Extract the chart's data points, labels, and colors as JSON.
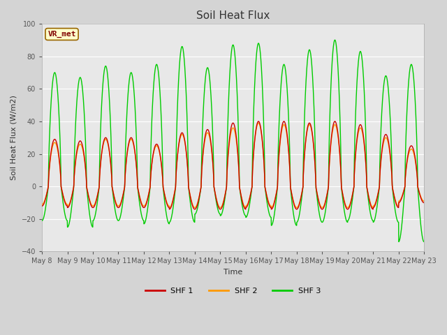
{
  "title": "Soil Heat Flux",
  "ylabel": "Soil Heat Flux (W/m2)",
  "xlabel": "Time",
  "ylim": [
    -40,
    100
  ],
  "yticks": [
    -40,
    -20,
    0,
    20,
    40,
    60,
    80,
    100
  ],
  "n_days": 15,
  "start_day": 8,
  "series_colors": [
    "#cc0000",
    "#ff9900",
    "#00cc00"
  ],
  "series_labels": [
    "SHF 1",
    "SHF 2",
    "SHF 3"
  ],
  "fig_bg_color": "#d4d4d4",
  "plot_bg_color": "#e8e8e8",
  "annotation_text": "VR_met",
  "annotation_bg": "#ffffcc",
  "annotation_border": "#996600",
  "day_amps_1": [
    29,
    28,
    30,
    30,
    26,
    33,
    35,
    39,
    40,
    40,
    39,
    40,
    38,
    32,
    25
  ],
  "day_amps_2": [
    27,
    26,
    29,
    29,
    25,
    32,
    33,
    36,
    39,
    38,
    38,
    38,
    36,
    30,
    23
  ],
  "day_amps_3": [
    70,
    67,
    74,
    70,
    75,
    86,
    73,
    87,
    88,
    75,
    84,
    90,
    83,
    68,
    75
  ],
  "night_amps_1": [
    12,
    13,
    13,
    13,
    13,
    14,
    14,
    14,
    13,
    14,
    14,
    14,
    14,
    13,
    10
  ],
  "night_amps_2": [
    11,
    12,
    12,
    12,
    12,
    13,
    13,
    13,
    12,
    13,
    13,
    13,
    13,
    12,
    9
  ],
  "night_amps_3": [
    21,
    25,
    21,
    21,
    23,
    22,
    17,
    18,
    19,
    24,
    22,
    22,
    21,
    22,
    34
  ]
}
